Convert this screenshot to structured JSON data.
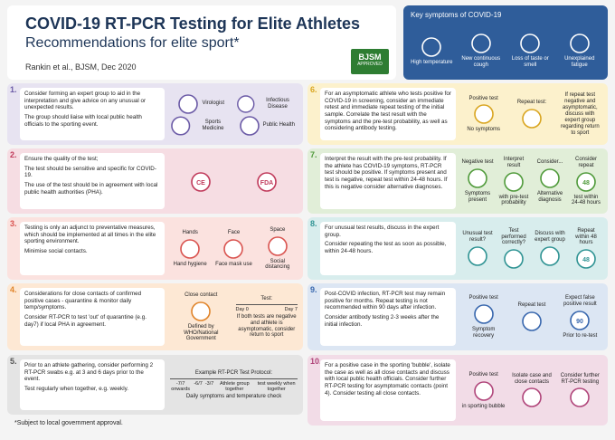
{
  "header": {
    "title": "COVID-19 RT-PCR Testing for Elite Athletes",
    "subtitle": "Recommendations for elite sport*",
    "citation": "Rankin et al., BJSM, Dec 2020",
    "badge": [
      "BJSM",
      "APPROVED"
    ]
  },
  "symptoms": {
    "title": "Key symptoms of COVID-19",
    "items": [
      "High temperature",
      "New continuous cough",
      "Loss of taste or smell",
      "Unexplained fatigue"
    ]
  },
  "sections": [
    {
      "number": "1.",
      "paragraphs": [
        "Consider forming an expert group to aid in the interpretation and give advice on any unusual or unexpected results.",
        "The group should liaise with local public health officials to the sporting event."
      ],
      "items": [
        {
          "caption": "Virologist"
        },
        {
          "caption": "Infectious Disease"
        },
        {
          "caption": "Sports Medicine"
        },
        {
          "caption": "Public Health"
        }
      ]
    },
    {
      "number": "2.",
      "paragraphs": [
        "Ensure the quality of the test;",
        "The test should be sensitive and specific for COVID-19.",
        "The use of the test should be in agreement with local public health authorities (PHA)."
      ],
      "items": [
        {
          "icon_text": "CE"
        },
        {
          "icon_text": "FDA"
        }
      ]
    },
    {
      "number": "3.",
      "paragraphs": [
        "Testing is only an adjunct to preventative measures, which should be implemented at all times in the elite sporting environment.",
        "Minimise social contacts."
      ],
      "items": [
        {
          "heading": "Hands",
          "caption": "Hand hygiene"
        },
        {
          "heading": "Face",
          "caption": "Face mask use"
        },
        {
          "heading": "Space",
          "caption": "Social distancing"
        }
      ]
    },
    {
      "number": "4.",
      "paragraphs": [
        "Considerations for close contacts of confirmed positive cases - quarantine & monitor daily temp/symptoms.",
        "Consider RT-PCR to test 'out' of quarantine (e.g. day7) if local PHA in agreement."
      ],
      "items": [
        {
          "heading": "Close contact",
          "caption": "Defined by WHO/National Government"
        },
        {
          "heading": "Test:",
          "timeline": [
            "Day 0",
            "Day 7"
          ],
          "caption": "If both tests are negative and athlete is asymptomatic, consider return to sport"
        }
      ]
    },
    {
      "number": "5.",
      "paragraphs": [
        "Prior to an athlete gathering, consider performing 2 RT-PCR swabs e.g. at 3 and 6 days prior to the event.",
        "Test regularly when together, e.g. weekly."
      ],
      "items": [
        {
          "heading": "Example RT-PCR Test Protocol:",
          "timeline": [
            "-7/7 onwards",
            "-6/7",
            "-3/7",
            "Athlete group together",
            "test weekly when together"
          ],
          "caption": "Daily symptoms and temperature check"
        }
      ]
    },
    {
      "number": "6.",
      "paragraphs": [
        "For an asymptomatic athlete who tests positive for COVID-19 in screening, consider an immediate retest and immediate repeat testing of the initial sample. Correlate the test result with the symptoms and the pre-test probability, as well as considering antibody testing."
      ],
      "items": [
        {
          "heading": "Positive test",
          "caption": "No symptoms"
        },
        {
          "heading": "Repeat test:"
        },
        {
          "note": "If repeat test negative and asymptomatic, discuss with expert group regarding return to sport"
        }
      ]
    },
    {
      "number": "7.",
      "paragraphs": [
        "Interpret the result with the pre-test probability. If the athlete has COVID-19 symptoms, RT-PCR test should be positive. If symptoms present and test is negative, repeat test within 24-48 hours. If this is negative consider alternative diagnoses."
      ],
      "items": [
        {
          "heading": "Negative test",
          "caption": "Symptoms present"
        },
        {
          "heading": "Interpret result",
          "caption": "with pre-test probability"
        },
        {
          "heading": "Consider...",
          "caption": "Alternative diagnosis"
        },
        {
          "heading": "Consider repeat",
          "icon_text": "48",
          "caption": "test within 24-48 hours"
        }
      ]
    },
    {
      "number": "8.",
      "paragraphs": [
        "For unusual test results, discuss in the expert group.",
        "Consider repeating the test as soon as possible, within 24-48 hours."
      ],
      "items": [
        {
          "heading": "Unusual test result?"
        },
        {
          "heading": "Test performed correctly?"
        },
        {
          "heading": "Discuss with expert group"
        },
        {
          "heading": "Repeat within 48 hours",
          "icon_text": "48"
        }
      ]
    },
    {
      "number": "9.",
      "paragraphs": [
        "Post-COVID infection, RT-PCR test may remain positive for months. Repeat testing is not recommended within 90 days after infection.",
        "Consider antibody testing 2-3 weeks after the initial infection."
      ],
      "items": [
        {
          "heading": "Positive test",
          "caption": "Symptom recovery"
        },
        {
          "heading": "Repeat test"
        },
        {
          "heading": "Expect false positive result",
          "icon_text": "90",
          "caption": "Prior to re-test"
        }
      ]
    },
    {
      "number": "10.",
      "paragraphs": [
        "For a positive case in the sporting 'bubble', isolate the case as well as all close contacts and discuss with local public health officials. Consider further RT-PCR testing for asymptomatic contacts (point 4). Consider testing all close contacts."
      ],
      "items": [
        {
          "heading": "Positive test",
          "caption": "in sporting bubble"
        },
        {
          "heading": "Isolate case and close contacts"
        },
        {
          "heading": "Consider further RT-PCR testing"
        }
      ]
    }
  ],
  "footnote": "*Subject to local government approval."
}
